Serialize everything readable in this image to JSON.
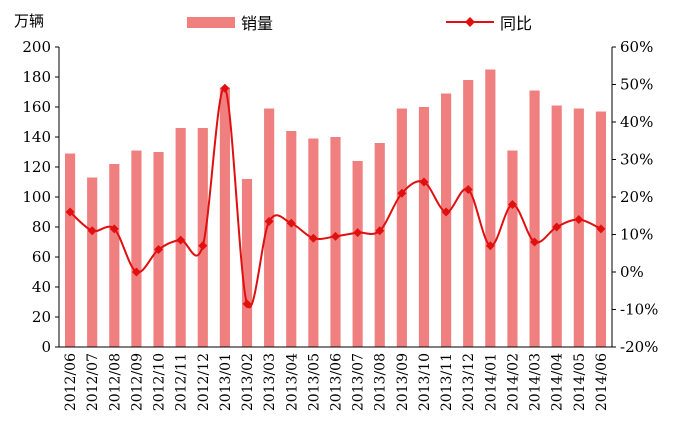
{
  "chart_data": {
    "type": "bar",
    "unit_left": "万辆",
    "categories": [
      "2012/06",
      "2012/07",
      "2012/08",
      "2012/09",
      "2012/10",
      "2012/11",
      "2012/12",
      "2013/01",
      "2013/02",
      "2013/03",
      "2013/04",
      "2013/05",
      "2013/06",
      "2013/07",
      "2013/08",
      "2013/09",
      "2013/10",
      "2013/11",
      "2013/12",
      "2014/01",
      "2014/02",
      "2014/03",
      "2014/04",
      "2014/05",
      "2014/06"
    ],
    "series": [
      {
        "name": "销量",
        "type": "bar",
        "axis": "left",
        "color": "#f08080",
        "values": [
          129,
          113,
          122,
          131,
          130,
          146,
          146,
          173,
          112,
          159,
          144,
          139,
          140,
          124,
          136,
          159,
          160,
          169,
          178,
          185,
          131,
          171,
          161,
          159,
          157
        ]
      },
      {
        "name": "同比",
        "type": "line",
        "axis": "right",
        "color": "#e01010",
        "values": [
          16,
          11,
          11.5,
          0,
          6,
          8.5,
          7,
          49,
          -8.5,
          13.5,
          13,
          9,
          9.5,
          10.5,
          11,
          21,
          24,
          16,
          22,
          7,
          18,
          8,
          12,
          14,
          11.5
        ]
      }
    ],
    "left_axis": {
      "ticks": [
        "0",
        "20",
        "40",
        "60",
        "80",
        "100",
        "120",
        "140",
        "160",
        "180",
        "200"
      ],
      "range": [
        0,
        200
      ]
    },
    "right_axis": {
      "ticks": [
        "-20%",
        "-10%",
        "0%",
        "10%",
        "20%",
        "30%",
        "40%",
        "50%",
        "60%"
      ],
      "range": [
        -20,
        60
      ]
    },
    "legend": {
      "placement": "top"
    },
    "grid": false
  }
}
